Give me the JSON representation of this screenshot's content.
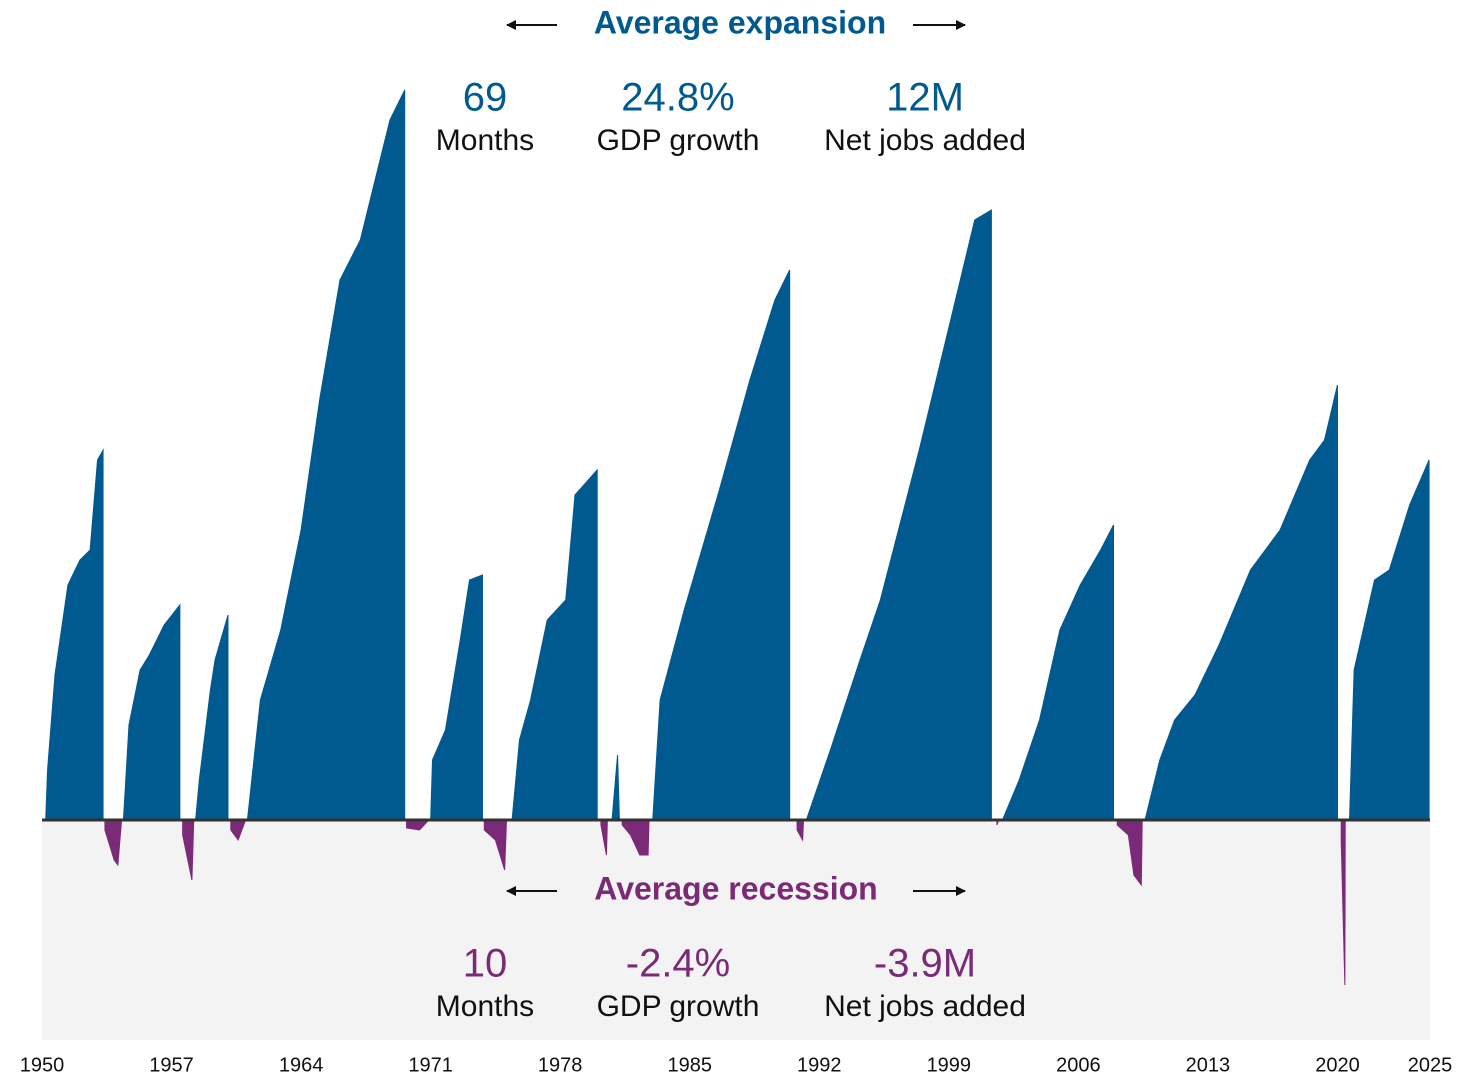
{
  "chart_data": {
    "type": "area",
    "annotations": {
      "expansion": {
        "title": "Average expansion",
        "stats": [
          {
            "value": "69",
            "label": "Months"
          },
          {
            "value": "24.8%",
            "label": "GDP growth"
          },
          {
            "value": "12M",
            "label": "Net jobs added"
          }
        ]
      },
      "recession": {
        "title": "Average recession",
        "stats": [
          {
            "value": "10",
            "label": "Months"
          },
          {
            "value": "-2.4%",
            "label": "GDP growth"
          },
          {
            "value": "-3.9M",
            "label": "Net jobs added"
          }
        ]
      }
    },
    "xlim": [
      1950,
      2025
    ],
    "xticks": [
      1950,
      1957,
      1964,
      1971,
      1978,
      1985,
      1992,
      1999,
      2006,
      2013,
      2020,
      2025
    ],
    "ylim": [
      -200,
      740
    ],
    "x": [
      1950.2,
      1950.3,
      1950.7,
      1951.4,
      1952.05,
      1952.6,
      1953.0,
      1953.3,
      1953.4,
      1953.9,
      1954.1,
      1954.3,
      1954.4,
      1954.7,
      1955.3,
      1955.8,
      1956.6,
      1957.45,
      1957.6,
      1958.1,
      1958.2,
      1958.3,
      1958.5,
      1959.1,
      1959.35,
      1960.05,
      1960.2,
      1960.6,
      1961.0,
      1961.1,
      1961.8,
      1962.9,
      1964.0,
      1965.0,
      1966.1,
      1967.2,
      1968.0,
      1968.8,
      1969.6,
      1969.7,
      1970.4,
      1970.9,
      1971.0,
      1971.1,
      1971.8,
      1972.6,
      1973.1,
      1973.8,
      1973.9,
      1974.5,
      1975.0,
      1975.1,
      1975.4,
      1975.8,
      1976.4,
      1977.3,
      1978.3,
      1978.8,
      1980.0,
      1980.2,
      1980.5,
      1980.55,
      1980.8,
      1981.1,
      1981.2,
      1981.35,
      1981.8,
      1982.3,
      1982.75,
      1982.8,
      1983.0,
      1983.4,
      1984.7,
      1986.6,
      1988.25,
      1989.6,
      1990.4,
      1990.8,
      1991.1,
      1991.15,
      1991.3,
      1992.6,
      1994.2,
      1995.3,
      1997.4,
      1999.1,
      2000.4,
      2001.3,
      2001.6,
      2001.7,
      2001.9,
      2002.8,
      2003.9,
      2005.0,
      2006.1,
      2007.2,
      2007.9,
      2008.1,
      2008.7,
      2009.0,
      2009.4,
      2009.45,
      2009.6,
      2010.4,
      2011.2,
      2012.3,
      2013.6,
      2015.3,
      2016.9,
      2018.5,
      2019.3,
      2020.0,
      2020.2,
      2020.4,
      2020.42,
      2020.65,
      2020.9,
      2022.0,
      2022.8,
      2023.9,
      2024.95
    ],
    "series": [
      {
        "color": "#005a8f",
        "values": [
          0,
          50,
          145,
          235,
          260,
          270,
          360,
          370,
          null,
          null,
          null,
          null,
          0,
          95,
          150,
          165,
          195,
          215,
          null,
          null,
          null,
          0,
          40,
          130,
          160,
          205,
          null,
          null,
          null,
          0,
          120,
          190,
          290,
          420,
          540,
          580,
          640,
          700,
          730,
          null,
          null,
          null,
          0,
          60,
          90,
          180,
          240,
          245,
          null,
          null,
          null,
          null,
          0,
          80,
          120,
          200,
          220,
          325,
          350,
          null,
          null,
          null,
          0,
          65,
          0,
          null,
          null,
          null,
          null,
          null,
          0,
          120,
          210,
          330,
          440,
          520,
          550,
          null,
          null,
          null,
          0,
          70,
          160,
          220,
          370,
          500,
          600,
          610,
          null,
          null,
          0,
          40,
          100,
          190,
          235,
          270,
          295,
          null,
          null,
          null,
          null,
          null,
          0,
          60,
          100,
          125,
          175,
          250,
          290,
          360,
          380,
          435,
          null,
          null,
          null,
          0,
          150,
          240,
          250,
          315,
          360
        ]
      },
      {
        "color": "#7b2a78",
        "values": [
          null,
          null,
          null,
          null,
          null,
          null,
          null,
          null,
          -10,
          -40,
          -45,
          0,
          null,
          null,
          null,
          null,
          null,
          null,
          -15,
          -60,
          0,
          null,
          null,
          null,
          null,
          null,
          -10,
          -20,
          0,
          null,
          null,
          null,
          null,
          null,
          null,
          null,
          null,
          null,
          null,
          -8,
          -10,
          0,
          null,
          null,
          null,
          null,
          null,
          null,
          -10,
          -20,
          -50,
          0,
          null,
          null,
          null,
          null,
          null,
          null,
          null,
          -5,
          -35,
          0,
          null,
          null,
          null,
          -5,
          -15,
          -35,
          -35,
          0,
          null,
          null,
          null,
          null,
          null,
          null,
          null,
          -10,
          -20,
          0,
          null,
          null,
          null,
          null,
          null,
          null,
          null,
          null,
          -5,
          0,
          null,
          null,
          null,
          null,
          null,
          null,
          null,
          -5,
          -15,
          -55,
          -65,
          0,
          null,
          null,
          null,
          null,
          null,
          null,
          null,
          null,
          null,
          null,
          -20,
          -165,
          0,
          null,
          null,
          null,
          null,
          null,
          null
        ]
      }
    ]
  }
}
